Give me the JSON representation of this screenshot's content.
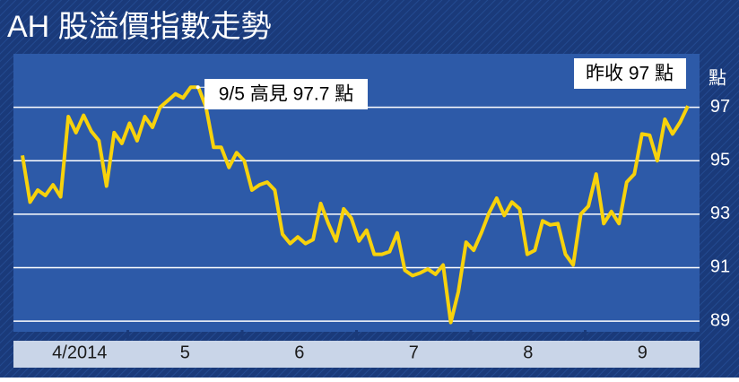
{
  "chart_data": {
    "type": "line",
    "title": "AH 股溢價指數走勢",
    "y_unit": "點",
    "annotations": [
      "9/5 高見 97.7 點",
      "昨收 97 點"
    ],
    "x_labels": [
      "4/2014",
      "5",
      "6",
      "7",
      "8",
      "9"
    ],
    "series": [
      {
        "name": "AH 股溢價指數",
        "color": "#f7d20c",
        "values": [
          95.2,
          93.45,
          93.9,
          93.7,
          94.1,
          93.65,
          96.65,
          96.05,
          96.7,
          96.1,
          95.75,
          94.05,
          96.05,
          95.65,
          96.4,
          95.75,
          96.65,
          96.25,
          97.0,
          97.25,
          97.5,
          97.35,
          97.75,
          97.75,
          97.0,
          95.5,
          95.5,
          94.75,
          95.3,
          95.0,
          93.9,
          94.1,
          94.2,
          93.9,
          92.25,
          91.9,
          92.15,
          91.9,
          92.05,
          93.4,
          92.65,
          92.0,
          93.2,
          92.85,
          92.0,
          92.4,
          91.5,
          91.5,
          91.6,
          92.3,
          90.9,
          90.7,
          90.8,
          90.95,
          90.75,
          91.1,
          88.95,
          90.1,
          91.95,
          91.65,
          92.3,
          93.05,
          93.6,
          92.95,
          93.45,
          93.2,
          91.5,
          91.65,
          92.75,
          92.6,
          92.65,
          91.5,
          91.1,
          93.0,
          93.3,
          94.5,
          92.65,
          93.1,
          92.65,
          94.2,
          94.5,
          96.0,
          95.95,
          95.0,
          96.55,
          96.0,
          96.45,
          97.05
        ]
      }
    ],
    "ylim": [
      88.6,
      99
    ],
    "yticks": [
      89,
      91,
      93,
      95,
      97
    ],
    "grid": true
  }
}
